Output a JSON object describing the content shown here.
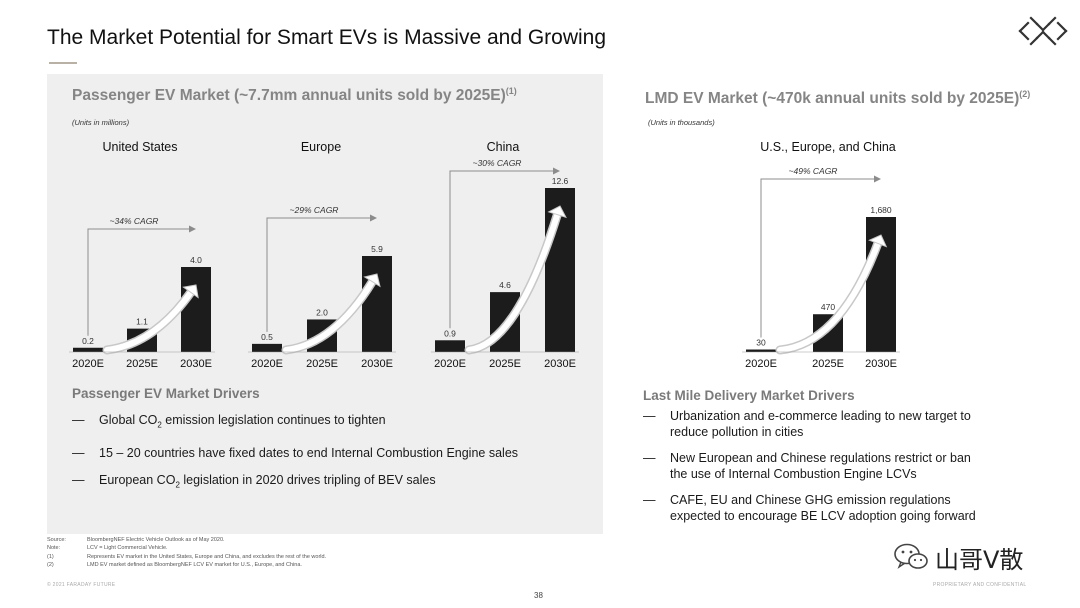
{
  "title": "The Market Potential  for Smart EVs is Massive  and Growing",
  "left": {
    "heading": "Passenger EV Market (~7.7mm annual units sold by 2025E)",
    "heading_sup": "(1)",
    "units": "(Units in millions)",
    "drivers_title": "Passenger EV Market Drivers",
    "drivers": [
      {
        "dash": "—",
        "pre": "Global CO",
        "sub": "2",
        "post": " emission legislation continues to tighten"
      },
      {
        "dash": "—",
        "pre": "15 – 20 countries have fixed dates to end Internal Combustion Engine sales",
        "sub": "",
        "post": ""
      },
      {
        "dash": "—",
        "pre": "European CO",
        "sub": "2",
        "post": " legislation in 2020 drives tripling of BEV sales"
      }
    ]
  },
  "right": {
    "heading": "LMD EV Market (~470k annual units sold by 2025E)",
    "heading_sup": "(2)",
    "units": "(Units in thousands)",
    "drivers_title": "Last Mile Delivery Market Drivers",
    "drivers": [
      {
        "dash": "—",
        "line1": "Urbanization and e-commerce leading to new target to",
        "line2": "reduce pollution in cities"
      },
      {
        "dash": "—",
        "line1": "New European and Chinese regulations restrict or ban",
        "line2": "the use of Internal Combustion Engine LCVs"
      },
      {
        "dash": "—",
        "line1": "CAFE, EU and Chinese GHG emission regulations",
        "line2": "expected to encourage BE LCV adoption going forward"
      }
    ]
  },
  "chart_data": [
    {
      "type": "bar",
      "title": "United States",
      "categories": [
        "2020E",
        "2025E",
        "2030E"
      ],
      "values": [
        0.2,
        1.1,
        4.0
      ],
      "value_labels": [
        "0.2",
        "1.1",
        "4.0"
      ],
      "cagr": "~34% CAGR",
      "units": "millions"
    },
    {
      "type": "bar",
      "title": "Europe",
      "categories": [
        "2020E",
        "2025E",
        "2030E"
      ],
      "values": [
        0.5,
        2.0,
        5.9
      ],
      "value_labels": [
        "0.5",
        "2.0",
        "5.9"
      ],
      "cagr": "~29% CAGR",
      "units": "millions"
    },
    {
      "type": "bar",
      "title": "China",
      "categories": [
        "2020E",
        "2025E",
        "2030E"
      ],
      "values": [
        0.9,
        4.6,
        12.6
      ],
      "value_labels": [
        "0.9",
        "4.6",
        "12.6"
      ],
      "cagr": "~30% CAGR",
      "units": "millions"
    },
    {
      "type": "bar",
      "title": "U.S., Europe, and China",
      "categories": [
        "2020E",
        "2025E",
        "2030E"
      ],
      "values": [
        30,
        470,
        1680
      ],
      "value_labels": [
        "30",
        "470",
        "1,680"
      ],
      "cagr": "~49% CAGR",
      "units": "thousands"
    }
  ],
  "footnotes": [
    {
      "key": "Source:",
      "text": "BloombergNEF Electric Vehicle Outlook as of May 2020."
    },
    {
      "key": "Note:",
      "text": "LCV = Light Commercial Vehicle."
    },
    {
      "key": "(1)",
      "text": "Represents EV market in the United States, Europe and China, and excludes the rest of the world."
    },
    {
      "key": "(2)",
      "text": "LMD EV market defined as BloombergNEF LCV EV market for U.S., Europe, and China."
    }
  ],
  "copyright": "© 2021 FARADAY FUTURE",
  "proprietary": "PROPRIETARY  AND CONFIDENTIAL",
  "page_number": "38",
  "watermark": "山哥V散",
  "colors": {
    "bar": "#1c1c1c",
    "panel": "#efefef",
    "heading": "#858585",
    "arrow_shade": "#c8c8c8"
  }
}
